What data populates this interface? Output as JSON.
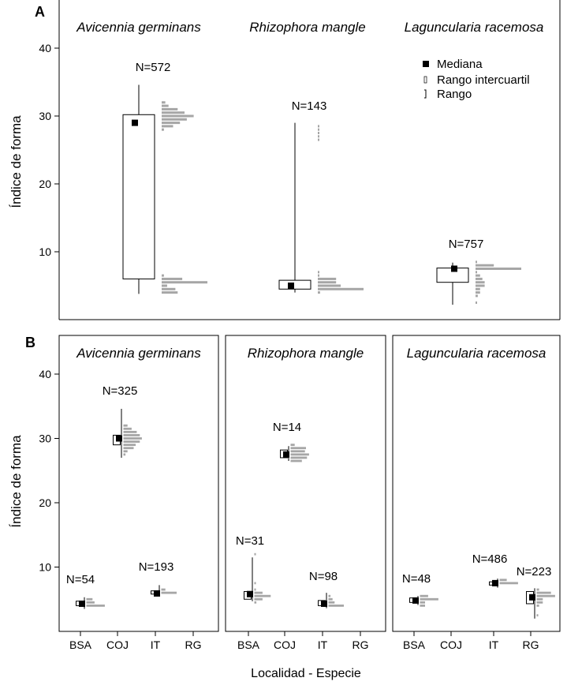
{
  "figure": {
    "panel_a_label": "A",
    "panel_b_label": "B",
    "ylabel": "Índice de forma",
    "xlabel": "Localidad - Especie",
    "legend": [
      "Mediana",
      "Rango intercuartil",
      "Rango"
    ]
  },
  "chart_data": [
    {
      "type": "box",
      "panel": "A",
      "ylim": [
        0,
        45
      ],
      "yticks": [
        10,
        20,
        30,
        40
      ],
      "ylabel": "Índice de forma",
      "categories": [
        "Avicennia germinans",
        "Rhizophora mangle",
        "Laguncularia racemosa"
      ],
      "n_labels": [
        "N=572",
        "N=143",
        "N=757"
      ],
      "series": [
        {
          "name": "Avicennia germinans",
          "median": 29,
          "q1": 6,
          "q3": 30.2,
          "min": 3.8,
          "max": 34.6
        },
        {
          "name": "Rhizophora mangle",
          "median": 5,
          "q1": 4.5,
          "q3": 5.8,
          "min": 4,
          "max": 29
        },
        {
          "name": "Laguncularia racemosa",
          "median": 7.5,
          "q1": 5.5,
          "q3": 7.6,
          "min": 2.2,
          "max": 8.4
        }
      ],
      "histograms": [
        {
          "bins": [
            32,
            31.5,
            31,
            30.5,
            30,
            29.5,
            29,
            28.5,
            28,
            6.5,
            6,
            5.5,
            5,
            4.5,
            4
          ],
          "widths": [
            0.08,
            0.15,
            0.35,
            0.5,
            0.7,
            0.55,
            0.4,
            0.25,
            0.05,
            0.05,
            0.45,
            1.0,
            0.12,
            0.3,
            0.35
          ]
        },
        {
          "bins": [
            28.5,
            28,
            27.5,
            27,
            26.5,
            7,
            6.5,
            6,
            5.5,
            5,
            4.5,
            4
          ],
          "widths": [
            0.02,
            0.02,
            0.02,
            0.02,
            0.02,
            0.02,
            0.03,
            0.4,
            0.4,
            0.5,
            1.0,
            0.05
          ]
        },
        {
          "bins": [
            8.5,
            8,
            7.5,
            7,
            6.5,
            6,
            5.5,
            5,
            4.5,
            4,
            3.5,
            2.5
          ],
          "widths": [
            0.02,
            0.4,
            1.0,
            0.03,
            0.1,
            0.15,
            0.2,
            0.2,
            0.1,
            0.1,
            0.05,
            0.02
          ]
        }
      ]
    },
    {
      "type": "box",
      "panel": "B",
      "ylim": [
        0,
        45
      ],
      "yticks": [
        10,
        20,
        30,
        40
      ],
      "ylabel": "Índice de forma",
      "xlabel": "Localidad - Especie",
      "locations": [
        "BSA",
        "COJ",
        "IT",
        "RG"
      ],
      "facets": [
        {
          "title": "Avicennia germinans",
          "groups": [
            {
              "loc": "BSA",
              "n": "N=54",
              "median": 4.3,
              "q1": 4,
              "q3": 4.7,
              "min": 3.5,
              "max": 5.3,
              "bins": [
                5,
                4.5,
                4
              ],
              "widths": [
                0.3,
                0.4,
                0.9
              ]
            },
            {
              "loc": "COJ",
              "n": "N=325",
              "median": 30,
              "q1": 29,
              "q3": 30.5,
              "min": 27,
              "max": 34.6,
              "bins": [
                32,
                31.5,
                31,
                30.5,
                30,
                29.5,
                29,
                28.5,
                28,
                27.5
              ],
              "widths": [
                0.2,
                0.4,
                0.65,
                0.8,
                0.9,
                0.8,
                0.6,
                0.5,
                0.2,
                0.1
              ]
            },
            {
              "loc": "IT",
              "n": "N=193",
              "median": 5.9,
              "q1": 5.8,
              "q3": 6.3,
              "min": 5.5,
              "max": 7.2,
              "bins": [
                6.5,
                6
              ],
              "widths": [
                0.2,
                0.75
              ]
            },
            {
              "loc": "RG",
              "n": "",
              "median": null
            }
          ]
        },
        {
          "title": "Rhizophora mangle",
          "groups": [
            {
              "loc": "BSA",
              "n": "N=31",
              "median": 5.8,
              "q1": 5,
              "q3": 6.2,
              "min": 4.7,
              "max": 11.5,
              "bins": [
                12,
                7.5,
                6.5,
                6,
                5.5,
                5,
                4.5
              ],
              "widths": [
                0.02,
                0.02,
                0.05,
                0.4,
                0.8,
                0.4,
                0.1
              ]
            },
            {
              "loc": "COJ",
              "n": "N=14",
              "median": 27.5,
              "q1": 27,
              "q3": 28.2,
              "min": 26.5,
              "max": 28.8,
              "bins": [
                29,
                28.5,
                28,
                27.5,
                27,
                26.5
              ],
              "widths": [
                0.2,
                0.75,
                0.7,
                0.9,
                0.8,
                0.55
              ]
            },
            {
              "loc": "IT",
              "n": "N=98",
              "median": 4.3,
              "q1": 4,
              "q3": 4.8,
              "min": 3.6,
              "max": 6,
              "bins": [
                5.5,
                5,
                4.5,
                4
              ],
              "widths": [
                0.1,
                0.2,
                0.3,
                0.75
              ]
            },
            {
              "loc": "RG",
              "n": "",
              "median": null
            }
          ]
        },
        {
          "title": "Laguncularia racemosa",
          "groups": [
            {
              "loc": "BSA",
              "n": "N=48",
              "median": 4.8,
              "q1": 4.5,
              "q3": 5.2,
              "min": 4.1,
              "max": 5.5,
              "bins": [
                5.5,
                5,
                4.5,
                4
              ],
              "widths": [
                0.4,
                0.9,
                0.25,
                0.25
              ]
            },
            {
              "loc": "COJ",
              "n": "",
              "median": null
            },
            {
              "loc": "IT",
              "n": "N=486",
              "median": 7.5,
              "q1": 7.2,
              "q3": 7.7,
              "min": 6.8,
              "max": 8.2,
              "bins": [
                8,
                7.5
              ],
              "widths": [
                0.35,
                0.9
              ]
            },
            {
              "loc": "RG",
              "n": "N=223",
              "median": 5.3,
              "q1": 4.3,
              "q3": 6.2,
              "min": 2,
              "max": 6.7,
              "bins": [
                6.5,
                6,
                5.5,
                5,
                4.5,
                4,
                2.5
              ],
              "widths": [
                0.12,
                0.7,
                0.9,
                0.3,
                0.3,
                0.12,
                0.02
              ]
            }
          ]
        }
      ]
    }
  ]
}
